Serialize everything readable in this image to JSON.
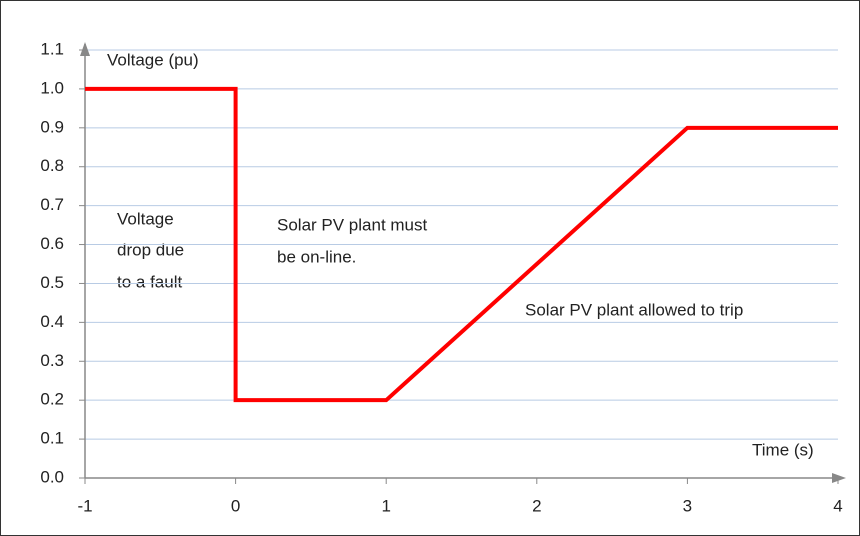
{
  "chart_data": {
    "type": "line",
    "x": [
      -1,
      0,
      0,
      1,
      3,
      4
    ],
    "series": [
      {
        "name": "Voltage",
        "color": "#ff0000",
        "values": [
          1.0,
          1.0,
          0.2,
          0.2,
          0.9,
          0.9
        ]
      }
    ],
    "y_label": "Voltage (pu)",
    "x_label": "Time (s)",
    "annotations": [
      {
        "lines": [
          "Voltage",
          "drop due",
          "to a fault"
        ]
      },
      {
        "lines": [
          "Solar PV plant must",
          "be on-line."
        ]
      },
      {
        "lines": [
          "Solar PV plant allowed to trip"
        ]
      }
    ],
    "xlim": [
      -1,
      4
    ],
    "xticks": [
      -1,
      0,
      1,
      2,
      3,
      4
    ],
    "ylim": [
      0,
      1.1
    ],
    "yticks": [
      {
        "value": 0,
        "label": "0.0"
      },
      0.1,
      0.2,
      0.3,
      0.4,
      0.5,
      0.6,
      0.7,
      0.8,
      0.9,
      {
        "value": 1,
        "label": "1.0"
      },
      1.1
    ],
    "grid": true
  }
}
